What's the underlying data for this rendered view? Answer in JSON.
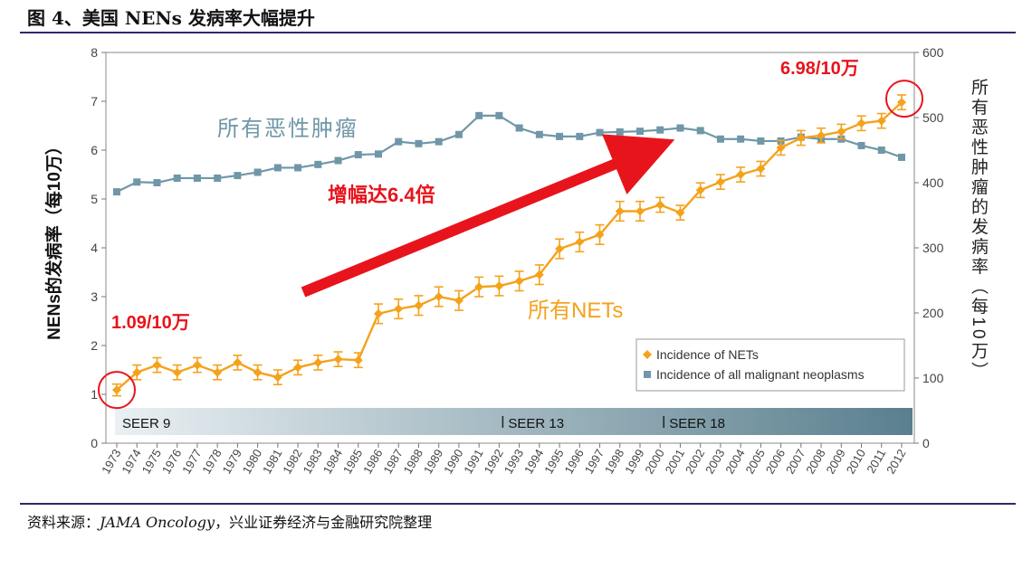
{
  "figure": {
    "title": "图 4、美国 NENs 发病率大幅提升",
    "source_prefix": "资料来源：",
    "source_journal": "JAMA Oncology",
    "source_suffix": "，兴业证券经济与金融研究院整理"
  },
  "chart_data": {
    "type": "line",
    "x": [
      "1973",
      "1974",
      "1975",
      "1976",
      "1977",
      "1978",
      "1979",
      "1980",
      "1981",
      "1982",
      "1983",
      "1984",
      "1985",
      "1986",
      "1987",
      "1988",
      "1989",
      "1990",
      "1991",
      "1992",
      "1993",
      "1994",
      "1995",
      "1996",
      "1997",
      "1998",
      "1999",
      "2000",
      "2001",
      "2002",
      "2003",
      "2004",
      "2005",
      "2006",
      "2007",
      "2008",
      "2009",
      "2010",
      "2011",
      "2012"
    ],
    "y_left": {
      "label": "NENs的发病率（每10万）",
      "range": [
        0,
        8
      ],
      "ticks": [
        "0",
        "1",
        "2",
        "3",
        "4",
        "5",
        "6",
        "7",
        "8"
      ]
    },
    "y_right": {
      "label": "所有恶性肿瘤的发病率（每10万）",
      "range": [
        0,
        600
      ],
      "ticks": [
        "0",
        "100",
        "200",
        "300",
        "400",
        "500",
        "600"
      ]
    },
    "series": [
      {
        "name": "Incidence of NETs",
        "axis": "left",
        "color": "#f5a21b",
        "values": [
          1.09,
          1.45,
          1.6,
          1.45,
          1.6,
          1.45,
          1.65,
          1.45,
          1.35,
          1.55,
          1.65,
          1.72,
          1.7,
          2.65,
          2.75,
          2.82,
          3.0,
          2.92,
          3.2,
          3.22,
          3.32,
          3.45,
          3.98,
          4.12,
          4.27,
          4.75,
          4.75,
          4.88,
          4.72,
          5.18,
          5.35,
          5.5,
          5.62,
          6.05,
          6.25,
          6.3,
          6.38,
          6.55,
          6.6,
          6.98
        ],
        "err": [
          0.12,
          0.15,
          0.15,
          0.15,
          0.15,
          0.15,
          0.15,
          0.15,
          0.15,
          0.15,
          0.15,
          0.15,
          0.15,
          0.2,
          0.2,
          0.2,
          0.2,
          0.2,
          0.2,
          0.2,
          0.2,
          0.2,
          0.2,
          0.2,
          0.2,
          0.2,
          0.2,
          0.15,
          0.15,
          0.15,
          0.15,
          0.15,
          0.15,
          0.15,
          0.15,
          0.15,
          0.15,
          0.15,
          0.15,
          0.15
        ]
      },
      {
        "name": "Incidence of all malignant neoplasms",
        "axis": "right",
        "color": "#6f97a7",
        "values": [
          386,
          401,
          400,
          407,
          407,
          407,
          411,
          416,
          423,
          423,
          428,
          434,
          443,
          444,
          463,
          460,
          463,
          474,
          503,
          503,
          484,
          474,
          471,
          471,
          477,
          478,
          479,
          481,
          484,
          480,
          467,
          467,
          464,
          464,
          470,
          467,
          467,
          457,
          450,
          439
        ]
      }
    ],
    "legend": {
      "position": "bottom-right"
    },
    "periods": [
      {
        "label": "SEER 9",
        "start": "1973"
      },
      {
        "label": "SEER 13",
        "start": "1992"
      },
      {
        "label": "SEER 18",
        "start": "2000"
      }
    ],
    "annotations": {
      "start_value": "1.09/10万",
      "end_value": "6.98/10万",
      "growth": "增幅达6.4倍",
      "nets_label": "所有NETs",
      "malignant_label": "所有恶性肿瘤"
    },
    "colors": {
      "highlight": "#e8141c",
      "band_start": "#eaf0f3",
      "band_end": "#5a7f8e"
    }
  }
}
